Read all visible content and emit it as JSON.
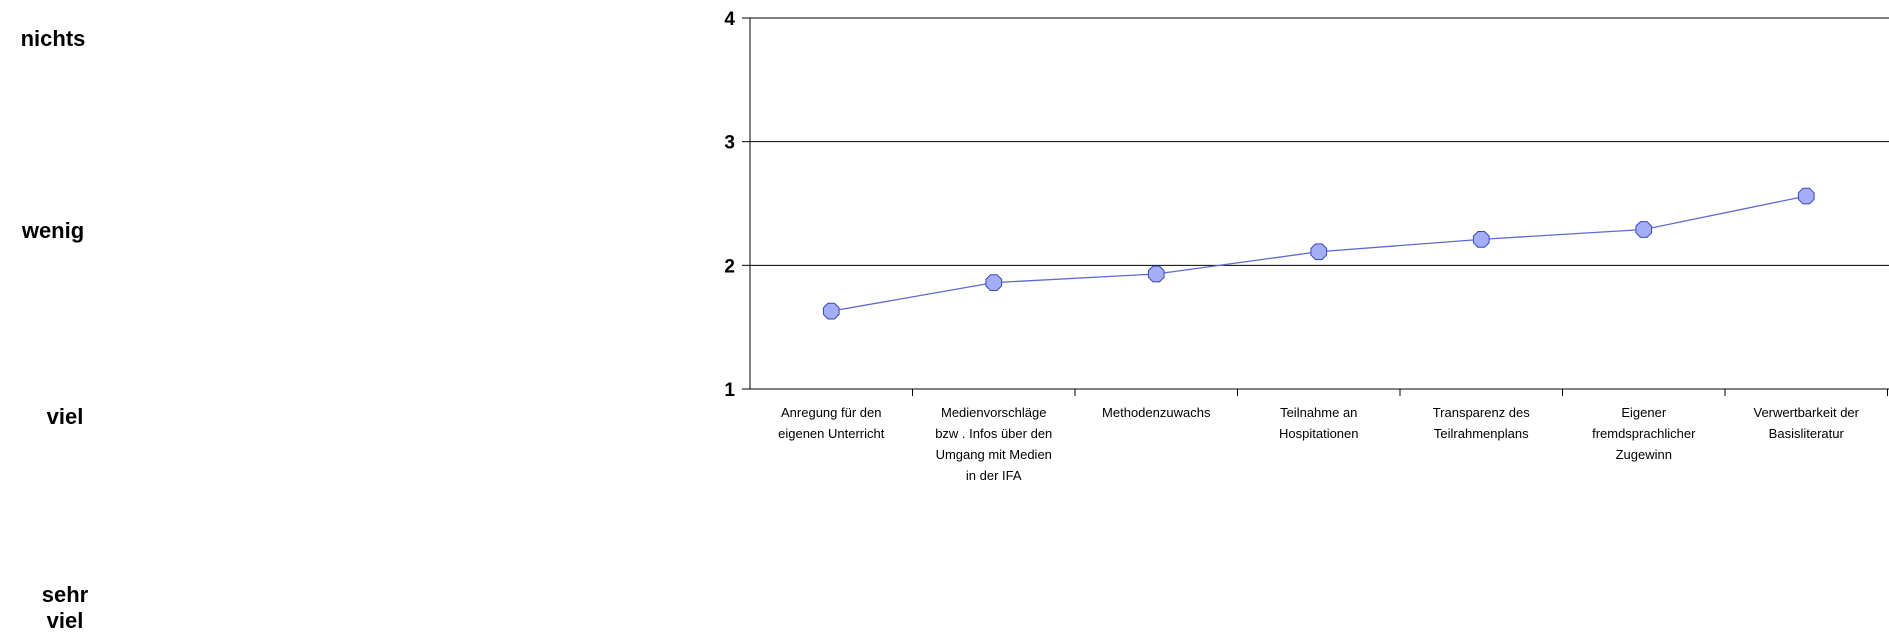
{
  "scale_labels": {
    "top": "nichts",
    "second": "wenig",
    "third": "viel",
    "bottom_line1": "sehr",
    "bottom_line2": "viel"
  },
  "chart_data": {
    "type": "line",
    "categories": [
      [
        "Anregung für den",
        "eigenen Unterricht"
      ],
      [
        "Medienvorschläge",
        "bzw . Infos über den",
        "Umgang mit Medien",
        "in der IFA"
      ],
      [
        "Methodenzuwachs"
      ],
      [
        "Teilnahme an",
        "Hospitationen"
      ],
      [
        "Transparenz des",
        "Teilrahmenplans"
      ],
      [
        "Eigener",
        "fremdsprachlicher",
        "Zugewinn"
      ],
      [
        "Verwertbarkeit der",
        "Basisliteratur"
      ]
    ],
    "values": [
      1.63,
      1.86,
      1.93,
      2.11,
      2.21,
      2.29,
      2.56
    ],
    "ylim": [
      1,
      4
    ],
    "yticks": [
      "1",
      "2",
      "3",
      "4"
    ],
    "grid": true,
    "colors": {
      "line": "#5a6acf",
      "marker_fill": "#a4aef6",
      "marker_stroke": "#3a48b8",
      "axis": "#000000",
      "grid": "#000000"
    }
  }
}
